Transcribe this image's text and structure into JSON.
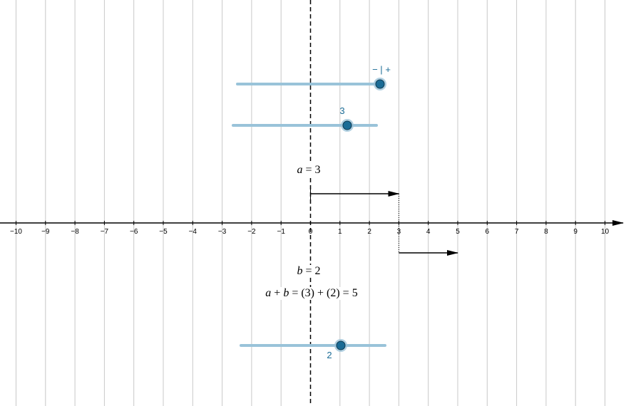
{
  "number_line": {
    "ticks": [
      "−10",
      "−9",
      "−8",
      "−7",
      "−6",
      "−5",
      "−4",
      "−3",
      "−2",
      "−1",
      "0",
      "1",
      "2",
      "3",
      "4",
      "5",
      "6",
      "7",
      "8",
      "9",
      "10"
    ],
    "tick_values": [
      -10,
      -9,
      -8,
      -7,
      -6,
      -5,
      -4,
      -3,
      -2,
      -1,
      0,
      1,
      2,
      3,
      4,
      5,
      6,
      7,
      8,
      9,
      10
    ]
  },
  "sliders": {
    "top": {
      "min_label": "−",
      "sep": "|",
      "plus_label": "+"
    },
    "a": {
      "value": 3,
      "label": "3"
    },
    "b": {
      "value": 2,
      "label": "2"
    }
  },
  "expressions": {
    "a_var": "a",
    "a_eq": "= 3",
    "b_var": "b",
    "b_eq": "= 2",
    "sum_a": "a",
    "sum_plus": "+",
    "sum_b": "b",
    "sum_rest": "= (3) + (2) = 5"
  },
  "vectors": {
    "a": {
      "from": 0,
      "to": 3
    },
    "b": {
      "from": 3,
      "to": 5
    }
  },
  "colors": {
    "slider_track": "#99c3d9",
    "slider_point": "#1b6c96",
    "slider_halo": "#9ec4d9",
    "grid_line": "#c8c8c8",
    "axis": "#000000"
  }
}
